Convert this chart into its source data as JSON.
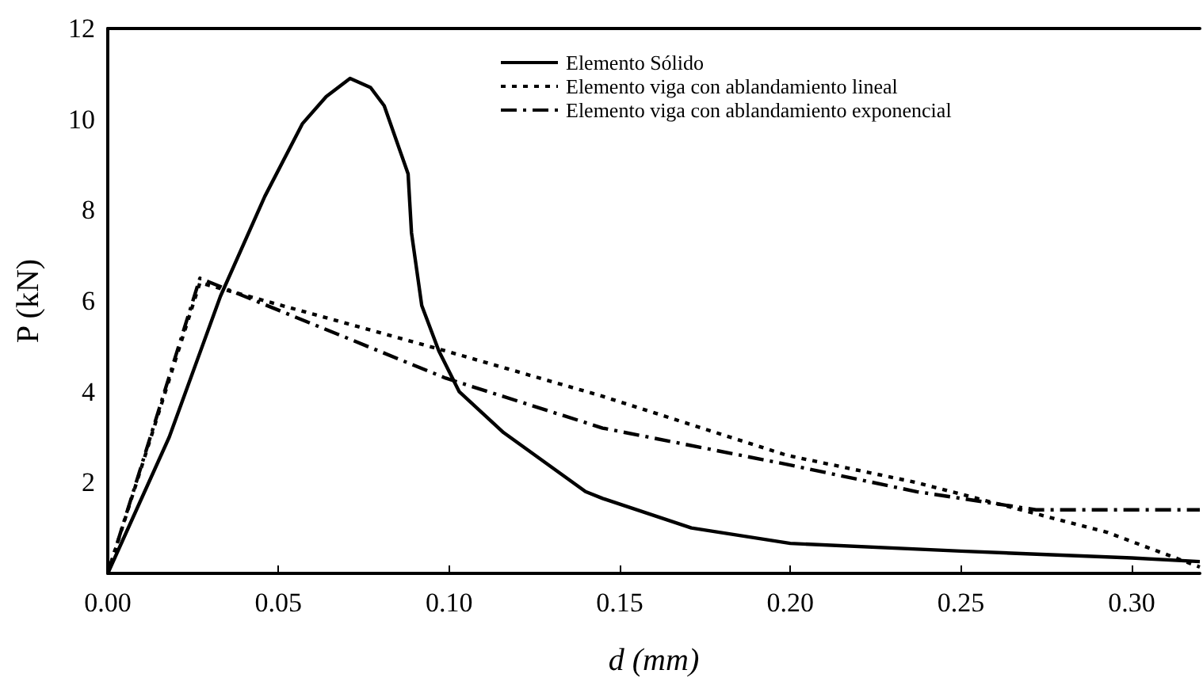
{
  "chart_data": {
    "type": "line",
    "xlabel": "d (mm)",
    "ylabel": "P (kN)",
    "xlim": [
      0,
      0.32
    ],
    "ylim": [
      0,
      12
    ],
    "xticks": [
      {
        "value": 0,
        "label": "0.00"
      },
      {
        "value": 0.05,
        "label": "0.05"
      },
      {
        "value": 0.1,
        "label": "0.10"
      },
      {
        "value": 0.15,
        "label": "0.15"
      },
      {
        "value": 0.2,
        "label": "0.20"
      },
      {
        "value": 0.25,
        "label": "0.25"
      },
      {
        "value": 0.3,
        "label": "0.30"
      }
    ],
    "yticks": [
      2,
      4,
      6,
      8,
      10,
      12
    ],
    "grid": false,
    "legend": "top right",
    "marker": "none",
    "series": [
      {
        "name": "Elemento Sólido",
        "color": "#000000",
        "line_style": "solid",
        "x": [
          0,
          0.018,
          0.033,
          0.046,
          0.057,
          0.064,
          0.071,
          0.077,
          0.081,
          0.088,
          0.089,
          0.092,
          0.097,
          0.103,
          0.116,
          0.14,
          0.145,
          0.171,
          0.2,
          0.25,
          0.3,
          0.32
        ],
        "values": [
          0,
          3,
          6.1,
          8.3,
          9.9,
          10.5,
          10.9,
          10.7,
          10.3,
          8.8,
          7.5,
          5.9,
          4.9,
          4,
          3.1,
          1.8,
          1.65,
          1,
          0.66,
          0.49,
          0.34,
          0.26
        ]
      },
      {
        "name": "Elemento viga con ablandamiento lineal",
        "color": "#000000",
        "line_style": "dotted",
        "x": [
          0,
          0.027,
          0.099,
          0.145,
          0.199,
          0.237,
          0.293,
          0.32
        ],
        "values": [
          0,
          6.4,
          4.9,
          3.9,
          2.6,
          2,
          0.9,
          0.14
        ]
      },
      {
        "name": "Elemento viga con ablandamiento exponencial",
        "color": "#000000",
        "line_style": "dashed",
        "x": [
          0,
          0.027,
          0.099,
          0.145,
          0.199,
          0.237,
          0.272,
          0.32
        ],
        "values": [
          0,
          6.5,
          4.3,
          3.2,
          2.4,
          1.8,
          1.4,
          1.4
        ]
      }
    ]
  }
}
